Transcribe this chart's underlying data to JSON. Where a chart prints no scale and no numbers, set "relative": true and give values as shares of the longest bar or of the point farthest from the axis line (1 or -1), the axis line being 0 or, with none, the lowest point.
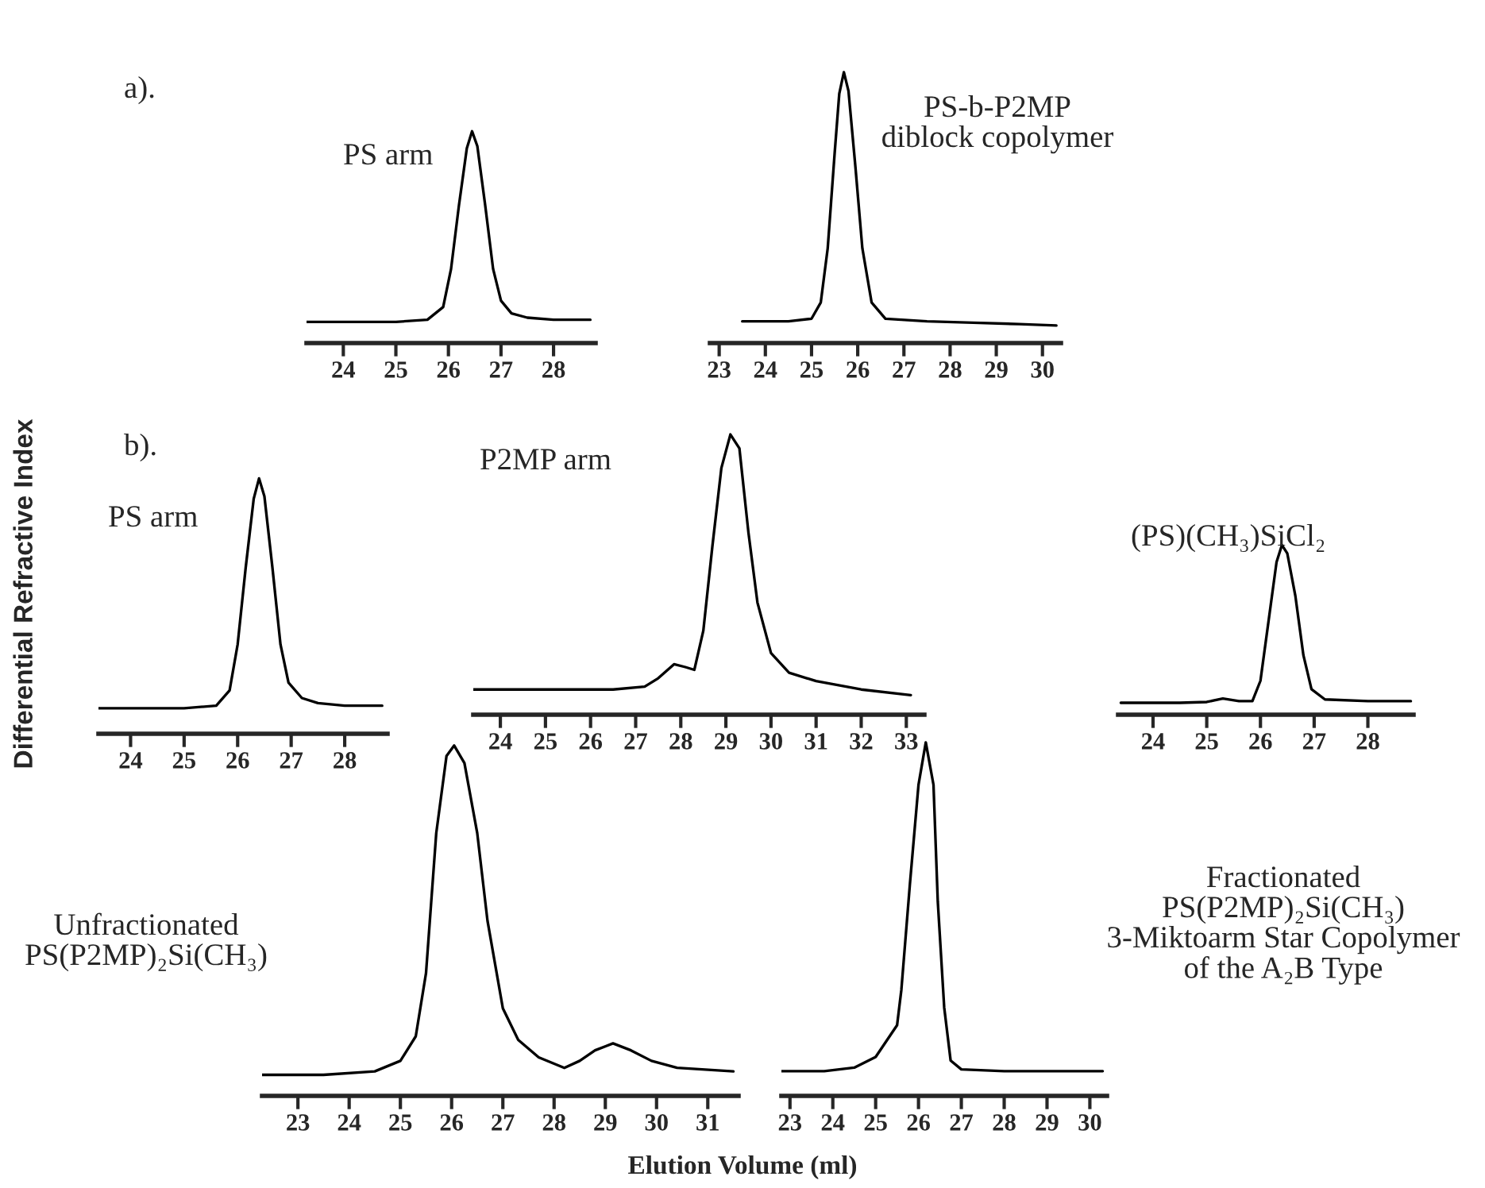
{
  "chart_data": [
    {
      "type": "line",
      "relative": true,
      "color": "#000000",
      "tick_labels": "x",
      "annotations": [
        "a).",
        "PS arm"
      ],
      "ylabel": "Differential Refractive Index",
      "xlim": [
        23.3,
        28.8
      ],
      "xticks": [
        24,
        25,
        26,
        27,
        28
      ],
      "x": [
        23.3,
        24,
        25,
        25.6,
        25.9,
        26.05,
        26.2,
        26.35,
        26.45,
        26.55,
        26.7,
        26.85,
        27.0,
        27.2,
        27.5,
        28,
        28.7
      ],
      "values": [
        0.1,
        0.1,
        0.1,
        0.11,
        0.17,
        0.35,
        0.65,
        0.92,
        1.0,
        0.93,
        0.65,
        0.35,
        0.2,
        0.14,
        0.12,
        0.11,
        0.11
      ]
    },
    {
      "type": "line",
      "relative": true,
      "color": "#000000",
      "tick_labels": "x",
      "annotations": [
        "PS-b-P2MP\ndiblock copolymer"
      ],
      "xlim": [
        22.8,
        30.4
      ],
      "xticks": [
        23,
        24,
        25,
        26,
        27,
        28,
        29,
        30
      ],
      "x": [
        23.5,
        24.5,
        25.0,
        25.2,
        25.35,
        25.5,
        25.6,
        25.7,
        25.8,
        25.95,
        26.1,
        26.3,
        26.6,
        27.5,
        28.5,
        29.5,
        30.3
      ],
      "values": [
        0.08,
        0.08,
        0.09,
        0.15,
        0.35,
        0.7,
        0.92,
        1.0,
        0.93,
        0.65,
        0.35,
        0.15,
        0.09,
        0.08,
        0.075,
        0.07,
        0.065
      ]
    },
    {
      "type": "line",
      "relative": true,
      "color": "#000000",
      "tick_labels": "x",
      "annotations": [
        "b).",
        "PS arm"
      ],
      "xlim": [
        23.4,
        28.8
      ],
      "xticks": [
        24,
        25,
        26,
        27,
        28
      ],
      "x": [
        23.4,
        24,
        25,
        25.6,
        25.85,
        26.0,
        26.15,
        26.3,
        26.4,
        26.5,
        26.65,
        26.8,
        26.95,
        27.2,
        27.5,
        28,
        28.7
      ],
      "values": [
        0.1,
        0.1,
        0.1,
        0.11,
        0.17,
        0.35,
        0.65,
        0.92,
        1.0,
        0.93,
        0.65,
        0.35,
        0.2,
        0.14,
        0.12,
        0.11,
        0.11
      ]
    },
    {
      "type": "line",
      "relative": true,
      "color": "#000000",
      "tick_labels": "x",
      "annotations": [
        "P2MP arm"
      ],
      "xlim": [
        23.4,
        33.4
      ],
      "xticks": [
        24,
        25,
        26,
        27,
        28,
        29,
        30,
        31,
        32,
        33
      ],
      "x": [
        23.4,
        25,
        26.5,
        27.2,
        27.5,
        27.85,
        28.1,
        28.3,
        28.5,
        28.7,
        28.9,
        29.1,
        29.3,
        29.5,
        29.7,
        30.0,
        30.4,
        31,
        32,
        33.1
      ],
      "values": [
        0.09,
        0.09,
        0.09,
        0.1,
        0.13,
        0.18,
        0.17,
        0.16,
        0.3,
        0.6,
        0.88,
        1.0,
        0.95,
        0.65,
        0.4,
        0.22,
        0.15,
        0.12,
        0.09,
        0.07
      ]
    },
    {
      "type": "line",
      "relative": true,
      "color": "#000000",
      "tick_labels": "x",
      "annotations": [
        "(PS)(CH₃)SiCl₂"
      ],
      "xlim": [
        23.35,
        28.85
      ],
      "xticks": [
        24,
        25,
        26,
        27,
        28
      ],
      "x": [
        23.4,
        24.5,
        25.0,
        25.3,
        25.6,
        25.85,
        26.0,
        26.15,
        26.3,
        26.4,
        26.5,
        26.65,
        26.8,
        26.95,
        27.2,
        28,
        28.8
      ],
      "values": [
        0.07,
        0.07,
        0.075,
        0.095,
        0.08,
        0.08,
        0.2,
        0.55,
        0.9,
        1.0,
        0.95,
        0.7,
        0.35,
        0.15,
        0.09,
        0.08,
        0.08
      ]
    },
    {
      "type": "line",
      "relative": true,
      "color": "#000000",
      "tick_labels": "x",
      "annotations": [
        "Unfractionated\nPS(P2MP)₂Si(CH₃)"
      ],
      "xlim": [
        22.3,
        31.6
      ],
      "xticks": [
        23,
        24,
        25,
        26,
        27,
        28,
        29,
        30,
        31
      ],
      "x": [
        22.3,
        23.5,
        24.5,
        25.0,
        25.3,
        25.5,
        25.7,
        25.9,
        26.05,
        26.25,
        26.5,
        26.7,
        27.0,
        27.3,
        27.7,
        28.2,
        28.5,
        28.8,
        29.15,
        29.5,
        29.9,
        30.4,
        31.5
      ],
      "values": [
        0.06,
        0.06,
        0.07,
        0.1,
        0.17,
        0.35,
        0.75,
        0.97,
        1.0,
        0.95,
        0.75,
        0.5,
        0.25,
        0.16,
        0.11,
        0.08,
        0.1,
        0.13,
        0.15,
        0.13,
        0.1,
        0.08,
        0.07
      ]
    },
    {
      "type": "line",
      "relative": true,
      "color": "#000000",
      "tick_labels": "x",
      "annotations": [
        "Fractionated\nPS(P2MP)₂Si(CH₃)\n3-Miktoarm Star Copolymer\nof the A₂B Type"
      ],
      "xlabel": "Elution Volume (ml)",
      "xlim": [
        22.8,
        30.4
      ],
      "xticks": [
        23,
        24,
        25,
        26,
        27,
        28,
        29,
        30
      ],
      "x": [
        22.8,
        23.8,
        24.5,
        25.0,
        25.5,
        25.6,
        25.8,
        26.0,
        26.17,
        26.35,
        26.45,
        26.6,
        26.75,
        27.0,
        28,
        30.3
      ],
      "values": [
        0.07,
        0.07,
        0.08,
        0.11,
        0.2,
        0.3,
        0.6,
        0.88,
        1.0,
        0.88,
        0.55,
        0.25,
        0.1,
        0.075,
        0.07,
        0.07
      ]
    }
  ]
}
